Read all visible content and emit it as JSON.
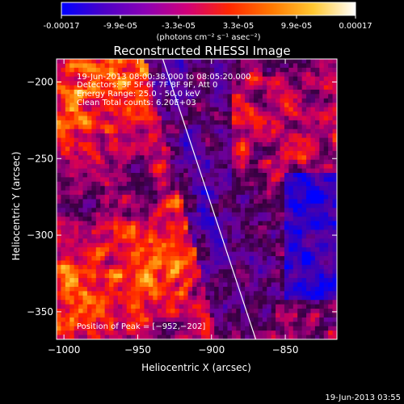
{
  "colorbar": {
    "ticks": [
      "-0.00017",
      "-9.9e-05",
      "-3.3e-05",
      "3.3e-05",
      "9.9e-05",
      "0.00017"
    ],
    "unit_label": "(photons cm⁻² s⁻¹ asec⁻²)",
    "stops": [
      "#0000ff",
      "#4b00c8",
      "#8c00b4",
      "#d20078",
      "#ff2800",
      "#ff7800",
      "#ffc832",
      "#ffffff"
    ]
  },
  "chart_data": {
    "type": "heatmap",
    "title": "Reconstructed RHESSI Image",
    "xlabel": "Heliocentric X (arcsec)",
    "ylabel": "Heliocentric Y (arcsec)",
    "xlim": [
      -1005,
      -815
    ],
    "ylim": [
      -368,
      -185
    ],
    "x_ticks": [
      -1000,
      -950,
      -900,
      -850
    ],
    "y_ticks": [
      -200,
      -250,
      -300,
      -350
    ],
    "x_tick_labels": [
      "−1000",
      "−950",
      "−900",
      "−850"
    ],
    "y_tick_labels": [
      "−200",
      "−250",
      "−300",
      "−350"
    ],
    "annotations": [
      "19-Jun-2013 08:00:38.000 to 08:05:20.000",
      "Detectors: 3F 5F 6F 7F 8F 9F, Att 0",
      "Energy Range: 25.0 - 50.0 keV",
      "Clean    Total counts: 6.20E+03"
    ],
    "peak_label": "Position of Peak = [−952,−202]",
    "limb_line": [
      [
        -933,
        -185
      ],
      [
        -870,
        -368
      ]
    ]
  },
  "footer_timestamp": "19-Jun-2013 03:55"
}
